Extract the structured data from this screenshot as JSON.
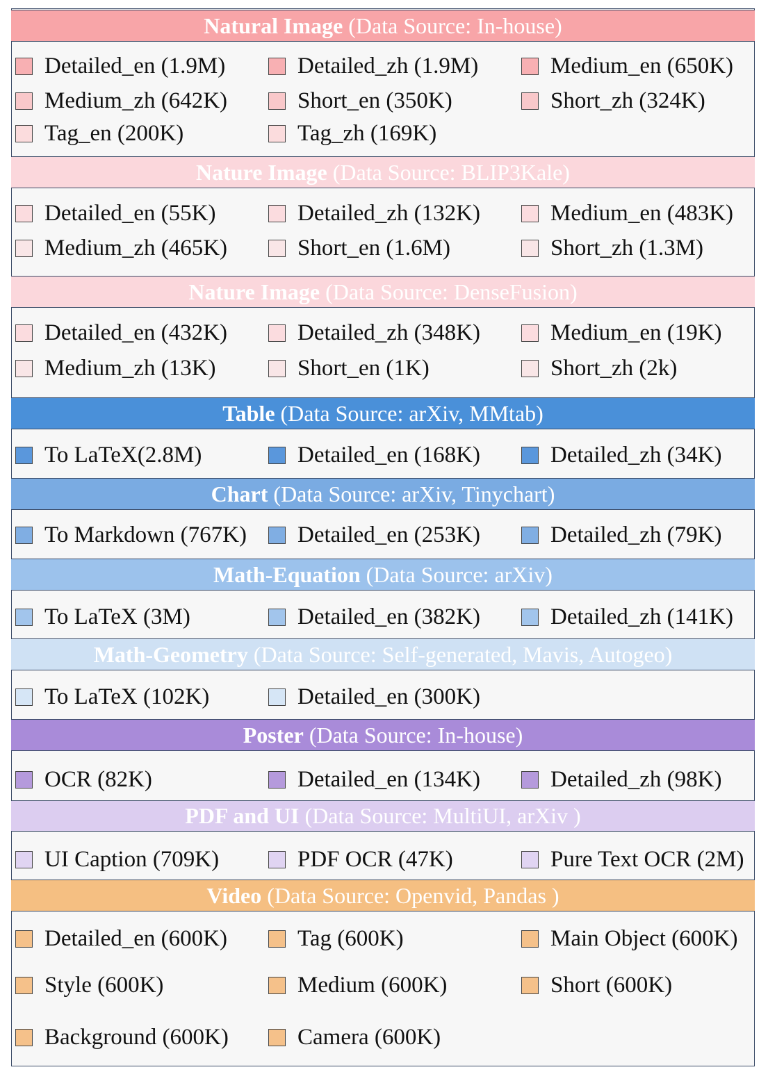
{
  "sections": [
    {
      "name": "Natural Image",
      "source": "(Data Source: In-house)",
      "color": "#f8a5a8",
      "text_color": "#ffffff",
      "items": [
        "Detailed_en (1.9M)",
        "Detailed_zh (1.9M)",
        "Medium_en (650K)",
        "Medium_zh (642K)",
        "Short_en (350K)",
        "Short_zh (324K)",
        "Tag_en (200K)",
        "Tag_zh (169K)"
      ],
      "swatches": [
        "#f8b0b3",
        "#f8b0b3",
        "#f8b0b3",
        "#f9c8ca",
        "#f9c8ca",
        "#f9c8ca",
        "#fbdcdd",
        "#fbdcdd"
      ]
    },
    {
      "name": "Nature Image",
      "source": "(Data Source: BLIP3Kale)",
      "color": "#fbd7dc",
      "text_color": "#ffffff",
      "items": [
        "Detailed_en (55K)",
        "Detailed_zh (132K)",
        "Medium_en (483K)",
        "Medium_zh (465K)",
        "Short_en (1.6M)",
        "Short_zh (1.3M)"
      ],
      "swatches": [
        "#fbdcdf",
        "#fbdcdf",
        "#fbdcdf",
        "#f9e6e7",
        "#f9e6e7",
        "#f9e6e7"
      ]
    },
    {
      "name": "Nature Image",
      "source": "(Data Source: DenseFusion)",
      "color": "#fbd7dc",
      "text_color": "#ffffff",
      "items": [
        "Detailed_en (432K)",
        "Detailed_zh (348K)",
        "Medium_en (19K)",
        "Medium_zh (13K)",
        "Short_en (1K)",
        "Short_zh (2k)"
      ],
      "swatches": [
        "#fbdcdf",
        "#fbdcdf",
        "#fbdcdf",
        "#f9e6e7",
        "#f9e6e7",
        "#f9e6e7"
      ]
    },
    {
      "name": "Table",
      "source": "(Data Source: arXiv, MMtab)",
      "color": "#4a90d9",
      "text_color": "#ffffff",
      "items": [
        "To LaTeX(2.8M)",
        "Detailed_en (168K)",
        "Detailed_zh (34K)"
      ],
      "swatches": [
        "#5a97dc",
        "#5a97dc",
        "#5a97dc"
      ]
    },
    {
      "name": "Chart",
      "source": "(Data Source: arXiv, Tinychart)",
      "color": "#7aabe2",
      "text_color": "#ffffff",
      "items": [
        "To Markdown (767K)",
        "Detailed_en (253K)",
        "Detailed_zh (79K)"
      ],
      "swatches": [
        "#80aee3",
        "#80aee3",
        "#80aee3"
      ]
    },
    {
      "name": "Math-Equation",
      "source": "(Data Source: arXiv)",
      "color": "#9cc2ec",
      "text_color": "#ffffff",
      "items": [
        "To LaTeX (3M)",
        "Detailed_en (382K)",
        "Detailed_zh (141K)"
      ],
      "swatches": [
        "#a2c5ec",
        "#a2c5ec",
        "#a2c5ec"
      ]
    },
    {
      "name": "Math-Geometry",
      "source": "(Data Source: Self-generated, Mavis, Autogeo)",
      "color": "#cfe1f4",
      "text_color": "#ffffff",
      "items": [
        "To LaTeX (102K)",
        "Detailed_en (300K)"
      ],
      "swatches": [
        "#d6e6f6",
        "#d6e6f6"
      ]
    },
    {
      "name": "Poster",
      "source": "(Data Source: In-house)",
      "color": "#a98bd9",
      "text_color": "#ffffff",
      "items": [
        "OCR (82K)",
        "Detailed_en (134K)",
        "Detailed_zh (98K)"
      ],
      "swatches": [
        "#b59adc",
        "#b59adc",
        "#b59adc"
      ]
    },
    {
      "name": "PDF and UI",
      "source": "(Data Source: MultiUI, arXiv )",
      "color": "#dccdf0",
      "text_color": "#ffffff",
      "items": [
        "UI Caption (709K)",
        "PDF OCR (47K)",
        "Pure Text OCR (2M)"
      ],
      "swatches": [
        "#e0d4f2",
        "#e0d4f2",
        "#e0d4f2"
      ]
    },
    {
      "name": "Video",
      "source": "(Data Source: Openvid, Pandas )",
      "color": "#f5bf82",
      "text_color": "#ffffff",
      "items": [
        "Detailed_en (600K)",
        "Tag (600K)",
        "Main Object (600K)",
        "Style (600K)",
        "Medium (600K)",
        "Short (600K)",
        "Background (600K)",
        "Camera (600K)"
      ],
      "swatches": [
        "#f5c18a",
        "#f5c18a",
        "#f5c18a",
        "#f5c18a",
        "#f5c18a",
        "#f5c18a",
        "#f5c18a",
        "#f5c18a"
      ]
    }
  ]
}
